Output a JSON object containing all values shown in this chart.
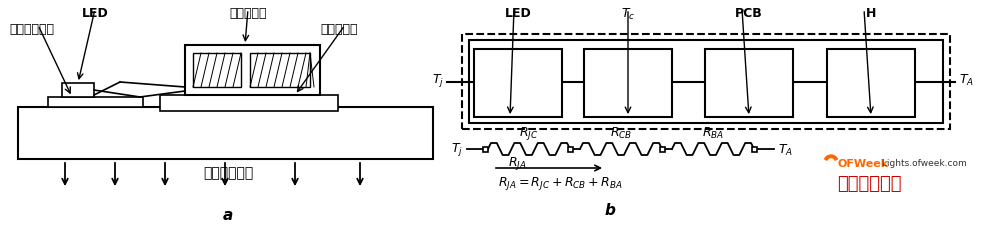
{
  "bg_color": "#ffffff",
  "line_color": "#000000",
  "title_a": "a",
  "title_b": "b",
  "label_LED_left": "LED",
  "label_da_gonglv": "大功率管芯",
  "label_lv_ban": "铝基板导电层",
  "label_tong_he_jin": "铜合金基座",
  "label_zhuyao": "主要散热方向",
  "label_LED_right": "LED",
  "label_Tc": "$T_c$",
  "label_PCB": "PCB",
  "label_H": "H",
  "label_Tj_left": "$T_j$",
  "label_TA_right": "$T_A$",
  "label_RJC": "$R_{JC}$",
  "label_RCB": "$R_{CB}$",
  "label_TBA": "$R_{BA}$",
  "label_RJA": "$R_{JA}$",
  "label_RJA_eq": "$R_{JA}=R_{JC}+R_{CB}+R_{BA}$",
  "ofweek_color": "#ff6600",
  "semi_color": "#cc0000",
  "semi_text": "半导体照明网"
}
